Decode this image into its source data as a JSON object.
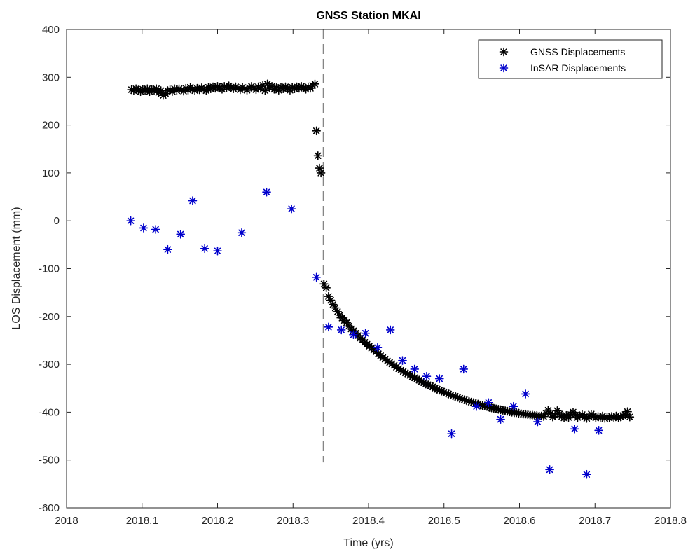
{
  "chart_data": {
    "type": "scatter",
    "title": "GNSS Station MKAI",
    "xlabel": "Time (yrs)",
    "ylabel": "LOS Displacement (mm)",
    "xlim": [
      2018,
      2018.8
    ],
    "ylim": [
      -600,
      400
    ],
    "xticks": [
      "2018",
      "2018.1",
      "2018.2",
      "2018.3",
      "2018.4",
      "2018.5",
      "2018.6",
      "2018.7",
      "2018.8"
    ],
    "yticks": [
      "400",
      "300",
      "200",
      "100",
      "0",
      "-100",
      "-200",
      "-300",
      "-400",
      "-500",
      "-600"
    ],
    "legend_position": "top-right",
    "vline": {
      "x": 2018.34,
      "y_range": [
        -505,
        400
      ],
      "style": "dashed",
      "color": "#7f7f7f"
    },
    "series": [
      {
        "name": "GNSS Displacements",
        "color": "#000000",
        "marker": "asterisk",
        "points": [
          [
            2018.086,
            274
          ],
          [
            2018.089,
            272
          ],
          [
            2018.092,
            276
          ],
          [
            2018.095,
            273
          ],
          [
            2018.098,
            270
          ],
          [
            2018.101,
            275
          ],
          [
            2018.104,
            272
          ],
          [
            2018.107,
            276
          ],
          [
            2018.11,
            270
          ],
          [
            2018.113,
            274
          ],
          [
            2018.116,
            272
          ],
          [
            2018.119,
            276
          ],
          [
            2018.122,
            268
          ],
          [
            2018.125,
            272
          ],
          [
            2018.128,
            262
          ],
          [
            2018.131,
            266
          ],
          [
            2018.134,
            272
          ],
          [
            2018.137,
            274
          ],
          [
            2018.14,
            270
          ],
          [
            2018.143,
            276
          ],
          [
            2018.146,
            272
          ],
          [
            2018.149,
            276
          ],
          [
            2018.152,
            274
          ],
          [
            2018.155,
            271
          ],
          [
            2018.158,
            277
          ],
          [
            2018.161,
            273
          ],
          [
            2018.164,
            279
          ],
          [
            2018.167,
            275
          ],
          [
            2018.17,
            272
          ],
          [
            2018.173,
            277
          ],
          [
            2018.176,
            274
          ],
          [
            2018.179,
            278
          ],
          [
            2018.182,
            275
          ],
          [
            2018.185,
            272
          ],
          [
            2018.188,
            279
          ],
          [
            2018.191,
            276
          ],
          [
            2018.194,
            280
          ],
          [
            2018.197,
            277
          ],
          [
            2018.2,
            281
          ],
          [
            2018.203,
            278
          ],
          [
            2018.206,
            275
          ],
          [
            2018.209,
            281
          ],
          [
            2018.212,
            278
          ],
          [
            2018.215,
            282
          ],
          [
            2018.218,
            279
          ],
          [
            2018.221,
            276
          ],
          [
            2018.224,
            280
          ],
          [
            2018.227,
            277
          ],
          [
            2018.23,
            274
          ],
          [
            2018.233,
            279
          ],
          [
            2018.236,
            276
          ],
          [
            2018.239,
            273
          ],
          [
            2018.242,
            278
          ],
          [
            2018.245,
            281
          ],
          [
            2018.248,
            277
          ],
          [
            2018.251,
            274
          ],
          [
            2018.254,
            280
          ],
          [
            2018.257,
            277
          ],
          [
            2018.26,
            283
          ],
          [
            2018.263,
            272
          ],
          [
            2018.266,
            286
          ],
          [
            2018.269,
            278
          ],
          [
            2018.272,
            281
          ],
          [
            2018.275,
            275
          ],
          [
            2018.278,
            278
          ],
          [
            2018.281,
            273
          ],
          [
            2018.284,
            279
          ],
          [
            2018.287,
            276
          ],
          [
            2018.29,
            280
          ],
          [
            2018.293,
            277
          ],
          [
            2018.296,
            273
          ],
          [
            2018.299,
            279
          ],
          [
            2018.302,
            276
          ],
          [
            2018.305,
            280
          ],
          [
            2018.308,
            277
          ],
          [
            2018.311,
            281
          ],
          [
            2018.314,
            278
          ],
          [
            2018.317,
            275
          ],
          [
            2018.32,
            280
          ],
          [
            2018.323,
            277
          ],
          [
            2018.326,
            283
          ],
          [
            2018.329,
            286
          ],
          [
            2018.331,
            188
          ],
          [
            2018.333,
            136
          ],
          [
            2018.335,
            110
          ],
          [
            2018.337,
            100
          ],
          [
            2018.341,
            -132
          ],
          [
            2018.344,
            -140
          ],
          [
            2018.347,
            -158
          ],
          [
            2018.35,
            -166
          ],
          [
            2018.353,
            -175
          ],
          [
            2018.356,
            -182
          ],
          [
            2018.359,
            -190
          ],
          [
            2018.362,
            -197
          ],
          [
            2018.365,
            -203
          ],
          [
            2018.368,
            -208
          ],
          [
            2018.371,
            -213
          ],
          [
            2018.374,
            -220
          ],
          [
            2018.377,
            -226
          ],
          [
            2018.38,
            -230
          ],
          [
            2018.383,
            -235
          ],
          [
            2018.386,
            -240
          ],
          [
            2018.389,
            -245
          ],
          [
            2018.392,
            -249
          ],
          [
            2018.395,
            -254
          ],
          [
            2018.398,
            -258
          ],
          [
            2018.401,
            -262
          ],
          [
            2018.404,
            -266
          ],
          [
            2018.407,
            -270
          ],
          [
            2018.41,
            -274
          ],
          [
            2018.413,
            -278
          ],
          [
            2018.416,
            -282
          ],
          [
            2018.419,
            -286
          ],
          [
            2018.422,
            -289
          ],
          [
            2018.425,
            -293
          ],
          [
            2018.428,
            -296
          ],
          [
            2018.431,
            -299
          ],
          [
            2018.434,
            -302
          ],
          [
            2018.437,
            -306
          ],
          [
            2018.44,
            -309
          ],
          [
            2018.443,
            -312
          ],
          [
            2018.446,
            -315
          ],
          [
            2018.449,
            -318
          ],
          [
            2018.452,
            -320
          ],
          [
            2018.455,
            -323
          ],
          [
            2018.458,
            -326
          ],
          [
            2018.461,
            -328
          ],
          [
            2018.464,
            -331
          ],
          [
            2018.467,
            -333
          ],
          [
            2018.47,
            -336
          ],
          [
            2018.473,
            -338
          ],
          [
            2018.476,
            -341
          ],
          [
            2018.479,
            -343
          ],
          [
            2018.482,
            -345
          ],
          [
            2018.485,
            -347
          ],
          [
            2018.488,
            -350
          ],
          [
            2018.491,
            -352
          ],
          [
            2018.494,
            -354
          ],
          [
            2018.497,
            -356
          ],
          [
            2018.5,
            -358
          ],
          [
            2018.503,
            -360
          ],
          [
            2018.506,
            -362
          ],
          [
            2018.509,
            -364
          ],
          [
            2018.512,
            -366
          ],
          [
            2018.515,
            -367
          ],
          [
            2018.518,
            -369
          ],
          [
            2018.521,
            -371
          ],
          [
            2018.524,
            -373
          ],
          [
            2018.527,
            -374
          ],
          [
            2018.53,
            -376
          ],
          [
            2018.533,
            -377
          ],
          [
            2018.536,
            -379
          ],
          [
            2018.539,
            -380
          ],
          [
            2018.542,
            -382
          ],
          [
            2018.545,
            -383
          ],
          [
            2018.548,
            -385
          ],
          [
            2018.551,
            -386
          ],
          [
            2018.554,
            -387
          ],
          [
            2018.557,
            -388
          ],
          [
            2018.56,
            -390
          ],
          [
            2018.563,
            -391
          ],
          [
            2018.566,
            -392
          ],
          [
            2018.569,
            -393
          ],
          [
            2018.572,
            -394
          ],
          [
            2018.575,
            -395
          ],
          [
            2018.578,
            -396
          ],
          [
            2018.581,
            -397
          ],
          [
            2018.584,
            -398
          ],
          [
            2018.587,
            -399
          ],
          [
            2018.59,
            -400
          ],
          [
            2018.593,
            -401
          ],
          [
            2018.596,
            -401
          ],
          [
            2018.599,
            -402
          ],
          [
            2018.602,
            -403
          ],
          [
            2018.605,
            -404
          ],
          [
            2018.608,
            -404
          ],
          [
            2018.611,
            -405
          ],
          [
            2018.614,
            -406
          ],
          [
            2018.617,
            -406
          ],
          [
            2018.62,
            -407
          ],
          [
            2018.623,
            -407
          ],
          [
            2018.626,
            -408
          ],
          [
            2018.629,
            -408
          ],
          [
            2018.632,
            -409
          ],
          [
            2018.635,
            -402
          ],
          [
            2018.638,
            -396
          ],
          [
            2018.641,
            -403
          ],
          [
            2018.644,
            -410
          ],
          [
            2018.647,
            -406
          ],
          [
            2018.65,
            -397
          ],
          [
            2018.653,
            -404
          ],
          [
            2018.656,
            -409
          ],
          [
            2018.659,
            -412
          ],
          [
            2018.662,
            -407
          ],
          [
            2018.665,
            -411
          ],
          [
            2018.668,
            -405
          ],
          [
            2018.671,
            -400
          ],
          [
            2018.674,
            -406
          ],
          [
            2018.677,
            -411
          ],
          [
            2018.68,
            -408
          ],
          [
            2018.683,
            -405
          ],
          [
            2018.686,
            -410
          ],
          [
            2018.689,
            -413
          ],
          [
            2018.692,
            -409
          ],
          [
            2018.695,
            -404
          ],
          [
            2018.698,
            -408
          ],
          [
            2018.701,
            -412
          ],
          [
            2018.704,
            -409
          ],
          [
            2018.707,
            -411
          ],
          [
            2018.71,
            -408
          ],
          [
            2018.713,
            -413
          ],
          [
            2018.716,
            -410
          ],
          [
            2018.719,
            -412
          ],
          [
            2018.722,
            -409
          ],
          [
            2018.725,
            -411
          ],
          [
            2018.728,
            -408
          ],
          [
            2018.731,
            -412
          ],
          [
            2018.734,
            -410
          ],
          [
            2018.737,
            -407
          ],
          [
            2018.74,
            -405
          ],
          [
            2018.743,
            -399
          ],
          [
            2018.746,
            -410
          ]
        ]
      },
      {
        "name": "InSAR Displacements",
        "color": "#0000cc",
        "marker": "asterisk",
        "points": [
          [
            2018.085,
            0
          ],
          [
            2018.102,
            -15
          ],
          [
            2018.118,
            -18
          ],
          [
            2018.134,
            -60
          ],
          [
            2018.151,
            -28
          ],
          [
            2018.167,
            42
          ],
          [
            2018.183,
            -58
          ],
          [
            2018.2,
            -63
          ],
          [
            2018.232,
            -25
          ],
          [
            2018.265,
            60
          ],
          [
            2018.298,
            25
          ],
          [
            2018.331,
            -118
          ],
          [
            2018.347,
            -222
          ],
          [
            2018.364,
            -228
          ],
          [
            2018.38,
            -238
          ],
          [
            2018.396,
            -235
          ],
          [
            2018.412,
            -265
          ],
          [
            2018.429,
            -228
          ],
          [
            2018.445,
            -292
          ],
          [
            2018.461,
            -310
          ],
          [
            2018.477,
            -325
          ],
          [
            2018.494,
            -330
          ],
          [
            2018.51,
            -445
          ],
          [
            2018.526,
            -310
          ],
          [
            2018.543,
            -388
          ],
          [
            2018.559,
            -380
          ],
          [
            2018.575,
            -415
          ],
          [
            2018.592,
            -388
          ],
          [
            2018.608,
            -362
          ],
          [
            2018.624,
            -420
          ],
          [
            2018.64,
            -520
          ],
          [
            2018.673,
            -435
          ],
          [
            2018.689,
            -530
          ],
          [
            2018.705,
            -438
          ]
        ]
      }
    ]
  }
}
